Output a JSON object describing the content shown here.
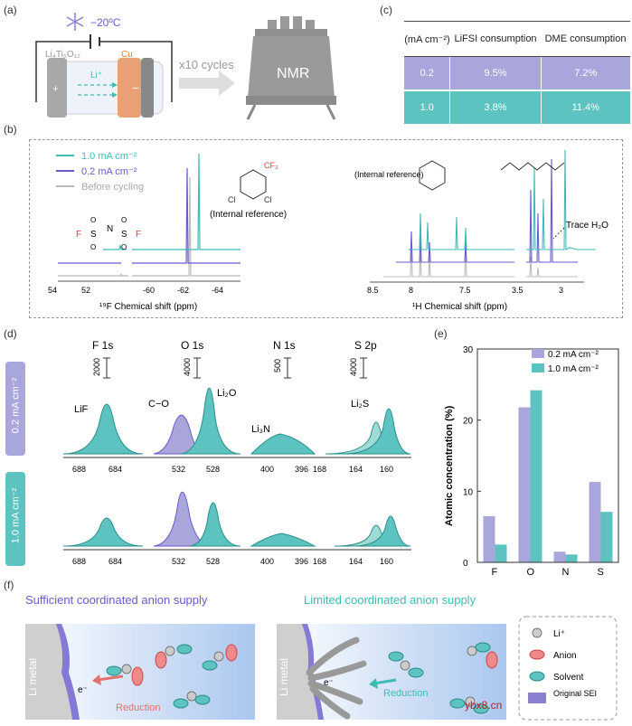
{
  "panel_labels": {
    "a": "(a)",
    "b": "(b)",
    "c": "(c)",
    "d": "(d)",
    "e": "(e)",
    "f": "(f)"
  },
  "panel_a": {
    "temperature": "−20ºC",
    "anode": "Li₄Ti₅O₁₂",
    "cathode": "Cu",
    "ion": "Li⁺",
    "plus": "+",
    "minus": "−",
    "cycles": "x10 cycles",
    "instrument": "NMR"
  },
  "panel_c": {
    "headers": [
      "(mA cm⁻²)",
      "LiFSI consumption",
      "DME consumption"
    ],
    "rows": [
      [
        "0.2",
        "9.5%",
        "7.2%"
      ],
      [
        "1.0",
        "3.8%",
        "11.4%"
      ]
    ],
    "colors": {
      "row1": "#a9a6db",
      "row2": "#5cc3c0"
    }
  },
  "panel_b": {
    "legend": [
      "1.0 mA cm⁻²",
      "0.2 mA cm⁻²",
      "Before cycling"
    ],
    "legend_colors": [
      "#3dbcb4",
      "#6a5acd",
      "#bbbbbb"
    ],
    "f_axis_title": "¹⁹F Chemical shift (ppm)",
    "f_ticks": [
      "54",
      "52",
      "-60",
      "-62",
      "-64"
    ],
    "h_axis_title": "¹H Chemical shift (ppm)",
    "h_ticks": [
      "8.5",
      "8",
      "7.5",
      "3.5",
      "3"
    ],
    "internal_ref_f": "(Internal reference)",
    "internal_ref_h": "(Internal\nreference)",
    "trace_label": "Trace H₂O",
    "fsi_atoms": [
      "F",
      "S",
      "N",
      "S",
      "F",
      "O",
      "O",
      "O",
      "O"
    ],
    "cf3": "CF₃",
    "cl": "Cl"
  },
  "panel_d": {
    "columns": [
      "F 1s",
      "O 1s",
      "N 1s",
      "S 2p"
    ],
    "scales": [
      "2000",
      "4000",
      "500",
      "4000"
    ],
    "rows": [
      "0.2 mA cm⁻²",
      "1.0 mA cm⁻²"
    ],
    "row_colors": [
      "#a9a6db",
      "#5cc3c0"
    ],
    "annotations": {
      "lif": "LiF",
      "co": "C−O",
      "li2o": "Li₂O",
      "li3n": "Li₃N",
      "li2s": "Li₂S"
    },
    "ticks": {
      "F": [
        "688",
        "684"
      ],
      "O": [
        "532",
        "528"
      ],
      "N": [
        "400",
        "396"
      ],
      "S": [
        "168",
        "164",
        "160"
      ]
    }
  },
  "chart_data": {
    "type": "bar",
    "categories": [
      "F",
      "O",
      "N",
      "S"
    ],
    "series": [
      {
        "name": "0.2 mA cm⁻²",
        "values": [
          6.5,
          21.8,
          1.5,
          11.3
        ],
        "color": "#a9a6db"
      },
      {
        "name": "1.0 mA cm⁻²",
        "values": [
          2.5,
          24.2,
          1.1,
          7.1
        ],
        "color": "#5cc3c0"
      }
    ],
    "ylabel": "Atomic concentration (%)",
    "ylim": [
      0,
      30
    ],
    "yticks": [
      0,
      10,
      20,
      30
    ],
    "legend": "top-right"
  },
  "panel_f": {
    "left_title": "Sufficient coordinated anion supply",
    "right_title": "Limited coordinated anion supply",
    "metal": "Li metal",
    "electron": "e⁻",
    "reduction": "Reduction",
    "legend": [
      "Li⁺",
      "Anion",
      "Solvent",
      "Original SEI"
    ],
    "watermark": "ybx8.cn"
  }
}
